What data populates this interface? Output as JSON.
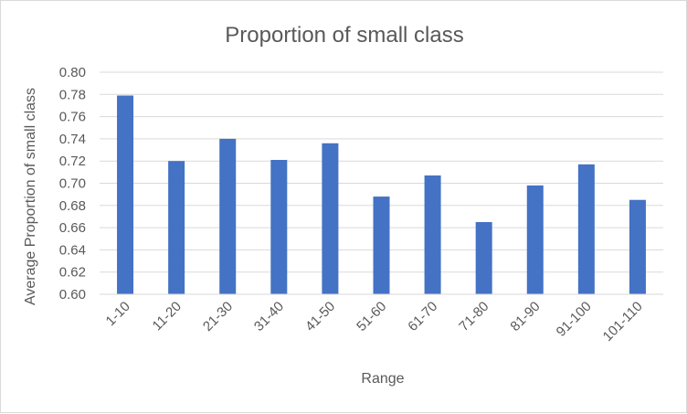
{
  "chart_data": {
    "type": "bar",
    "title": "Proportion of small class",
    "xlabel": "Range",
    "ylabel": "Average Proportion of small class",
    "categories": [
      "1-10",
      "11-20",
      "21-30",
      "31-40",
      "41-50",
      "51-60",
      "61-70",
      "71-80",
      "81-90",
      "91-100",
      "101-110"
    ],
    "values": [
      0.779,
      0.72,
      0.74,
      0.721,
      0.736,
      0.688,
      0.707,
      0.665,
      0.698,
      0.717,
      0.685
    ],
    "ylim": [
      0.6,
      0.8
    ],
    "yticks": [
      "0.60",
      "0.62",
      "0.64",
      "0.66",
      "0.68",
      "0.70",
      "0.72",
      "0.74",
      "0.76",
      "0.78",
      "0.80"
    ],
    "bar_color": "#4472c4",
    "grid": true,
    "legend": "none"
  }
}
